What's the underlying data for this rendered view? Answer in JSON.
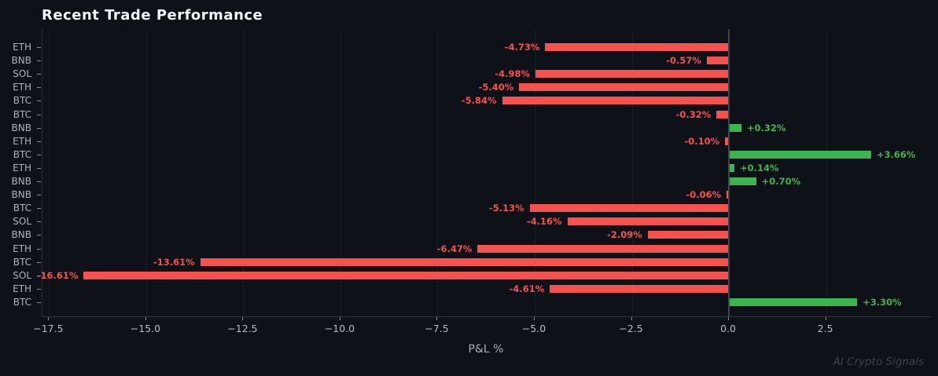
{
  "title": "Recent Trade Performance",
  "watermark": "AI Crypto Signals",
  "colors": {
    "background": "#0e1117",
    "negative": "#f5514e",
    "positive": "#3cb450",
    "grid": "rgba(255,255,255,0.055)",
    "zero_line": "#3e434c",
    "tick_mark": "#8a8f97",
    "tick_label": "#b9bdc3",
    "category_label": "#aeb3ba",
    "title_text": "#f2f4f7",
    "xlabel_text": "#a7acb4",
    "watermark_text": "#3d424c"
  },
  "chart_data": {
    "type": "bar",
    "orientation": "horizontal",
    "title": "Recent Trade Performance",
    "xlabel": "P&L %",
    "ylabel": "",
    "grid": true,
    "legend": false,
    "xlim": [
      -17.67,
      5.2
    ],
    "x_ticks": [
      {
        "value": -17.5,
        "label": "−17.5"
      },
      {
        "value": -15.0,
        "label": "−15.0"
      },
      {
        "value": -12.5,
        "label": "−12.5"
      },
      {
        "value": -10.0,
        "label": "−10.0"
      },
      {
        "value": -7.5,
        "label": "−7.5"
      },
      {
        "value": -5.0,
        "label": "−5.0"
      },
      {
        "value": -2.5,
        "label": "−2.5"
      },
      {
        "value": 0.0,
        "label": "0.0"
      },
      {
        "value": 2.5,
        "label": "2.5"
      }
    ],
    "categories": [
      "ETH",
      "BNB",
      "SOL",
      "ETH",
      "BTC",
      "BTC",
      "BNB",
      "ETH",
      "BTC",
      "ETH",
      "BNB",
      "BNB",
      "BTC",
      "SOL",
      "BNB",
      "ETH",
      "BTC",
      "SOL",
      "ETH",
      "BTC"
    ],
    "values": [
      -4.73,
      -0.57,
      -4.98,
      -5.4,
      -5.84,
      -0.32,
      0.32,
      -0.1,
      3.66,
      0.14,
      0.7,
      -0.06,
      -5.13,
      -4.16,
      -2.09,
      -6.47,
      -13.61,
      -16.61,
      -4.61,
      3.3
    ],
    "bar_labels": [
      "-4.73%",
      "-0.57%",
      "-4.98%",
      "-5.40%",
      "-5.84%",
      "-0.32%",
      "+0.32%",
      "-0.10%",
      "+3.66%",
      "+0.14%",
      "+0.70%",
      "-0.06%",
      "-5.13%",
      "-4.16%",
      "-2.09%",
      "-6.47%",
      "-13.61%",
      "-16.61%",
      "-4.61%",
      "+3.30%"
    ]
  }
}
